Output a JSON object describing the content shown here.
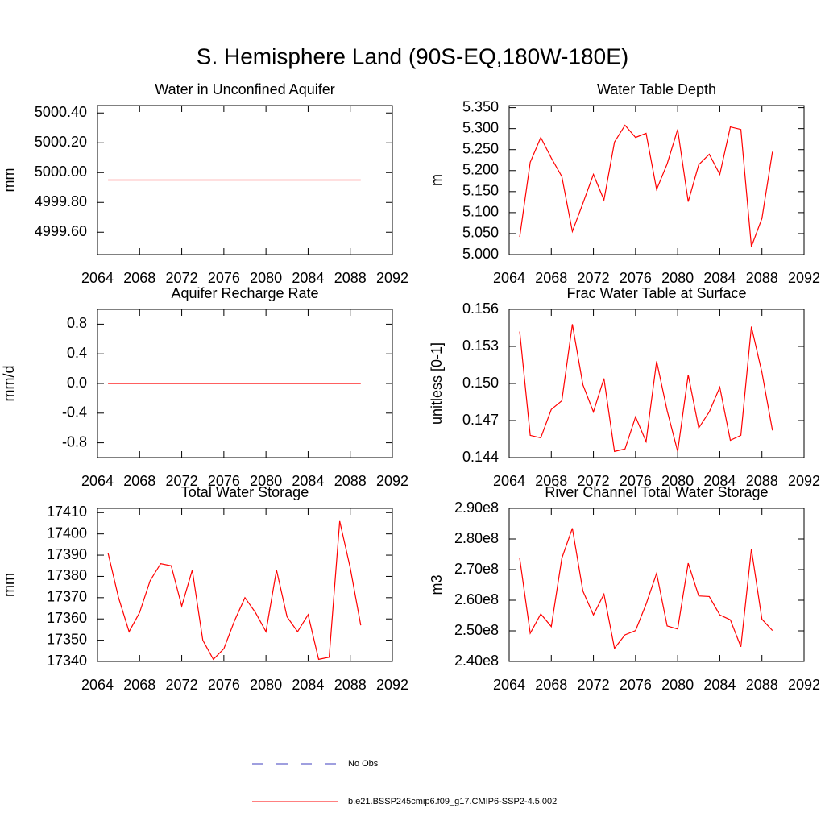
{
  "title": "S. Hemisphere Land (90S-EQ,180W-180E)",
  "legend": [
    {
      "name": "No Obs",
      "color": "#3f3fbf",
      "dash": true
    },
    {
      "name": "b.e21.BSSP245cmip6.f09_g17.CMIP6-SSP2-4.5.002",
      "color": "#ff0000",
      "dash": false
    }
  ],
  "chart_data": [
    {
      "type": "line",
      "title": "Water in Unconfined Aquifer",
      "y_label": "mm",
      "x": [
        2065,
        2066,
        2067,
        2068,
        2069,
        2070,
        2071,
        2072,
        2073,
        2074,
        2075,
        2076,
        2077,
        2078,
        2079,
        2080,
        2081,
        2082,
        2083,
        2084,
        2085,
        2086,
        2087,
        2088,
        2089
      ],
      "xlim": [
        2064,
        2092
      ],
      "xticks": [
        2064,
        2068,
        2072,
        2076,
        2080,
        2084,
        2088,
        2092
      ],
      "ylim": [
        4999.45,
        5000.45
      ],
      "yticks": [
        {
          "value": 4999.6,
          "label": "4999.60"
        },
        {
          "value": 4999.8,
          "label": "4999.80"
        },
        {
          "value": 5000,
          "label": "5000.00"
        },
        {
          "value": 5000.2,
          "label": "5000.20"
        },
        {
          "value": 5000.4,
          "label": "5000.40"
        }
      ],
      "series": [
        {
          "color": "#ff0000",
          "values": [
            4999.95,
            4999.95,
            4999.95,
            4999.95,
            4999.95,
            4999.95,
            4999.95,
            4999.95,
            4999.95,
            4999.95,
            4999.95,
            4999.95,
            4999.95,
            4999.95,
            4999.95,
            4999.95,
            4999.95,
            4999.95,
            4999.95,
            4999.95,
            4999.95,
            4999.95,
            4999.95,
            4999.95,
            4999.95
          ]
        }
      ]
    },
    {
      "type": "line",
      "title": "Water Table Depth",
      "y_label": "m",
      "x": [
        2065,
        2066,
        2067,
        2068,
        2069,
        2070,
        2071,
        2072,
        2073,
        2074,
        2075,
        2076,
        2077,
        2078,
        2079,
        2080,
        2081,
        2082,
        2083,
        2084,
        2085,
        2086,
        2087,
        2088,
        2089
      ],
      "xlim": [
        2064,
        2092
      ],
      "xticks": [
        2064,
        2068,
        2072,
        2076,
        2080,
        2084,
        2088,
        2092
      ],
      "ylim": [
        5.0,
        5.355
      ],
      "yticks": [
        {
          "value": 5.0,
          "label": "5.000"
        },
        {
          "value": 5.05,
          "label": "5.050"
        },
        {
          "value": 5.1,
          "label": "5.100"
        },
        {
          "value": 5.15,
          "label": "5.150"
        },
        {
          "value": 5.2,
          "label": "5.200"
        },
        {
          "value": 5.25,
          "label": "5.250"
        },
        {
          "value": 5.3,
          "label": "5.300"
        },
        {
          "value": 5.35,
          "label": "5.350"
        }
      ],
      "series": [
        {
          "color": "#ff0000",
          "values": [
            5.042,
            5.22,
            5.279,
            5.23,
            5.186,
            5.055,
            5.122,
            5.191,
            5.13,
            5.268,
            5.308,
            5.279,
            5.289,
            5.155,
            5.216,
            5.298,
            5.126,
            5.214,
            5.239,
            5.191,
            5.304,
            5.298,
            5.019,
            5.086,
            5.245
          ]
        }
      ]
    },
    {
      "type": "line",
      "title": "Aquifer Recharge Rate",
      "y_label": "mm/d",
      "x": [
        2065,
        2066,
        2067,
        2068,
        2069,
        2070,
        2071,
        2072,
        2073,
        2074,
        2075,
        2076,
        2077,
        2078,
        2079,
        2080,
        2081,
        2082,
        2083,
        2084,
        2085,
        2086,
        2087,
        2088,
        2089
      ],
      "xlim": [
        2064,
        2092
      ],
      "xticks": [
        2064,
        2068,
        2072,
        2076,
        2080,
        2084,
        2088,
        2092
      ],
      "ylim": [
        -1,
        1
      ],
      "yticks": [
        -0.8,
        -0.4,
        {
          "value": 0,
          "label": "0.0"
        },
        0.4,
        0.8
      ],
      "series": [
        {
          "color": "#ff0000",
          "values": [
            0,
            0,
            0,
            0,
            0,
            0,
            0,
            0,
            0,
            0,
            0,
            0,
            0,
            0,
            0,
            0,
            0,
            0,
            0,
            0,
            0,
            0,
            0,
            0,
            0
          ]
        }
      ]
    },
    {
      "type": "line",
      "title": "Frac Water Table at Surface",
      "y_label": "unitless [0-1]",
      "x": [
        2065,
        2066,
        2067,
        2068,
        2069,
        2070,
        2071,
        2072,
        2073,
        2074,
        2075,
        2076,
        2077,
        2078,
        2079,
        2080,
        2081,
        2082,
        2083,
        2084,
        2085,
        2086,
        2087,
        2088,
        2089
      ],
      "xlim": [
        2064,
        2092
      ],
      "xticks": [
        2064,
        2068,
        2072,
        2076,
        2080,
        2084,
        2088,
        2092
      ],
      "ylim": [
        0.144,
        0.156
      ],
      "yticks": [
        0.144,
        0.147,
        {
          "value": 0.15,
          "label": "0.150"
        },
        0.153,
        0.156
      ],
      "series": [
        {
          "color": "#ff0000",
          "values": [
            0.1542,
            0.1458,
            0.1456,
            0.1479,
            0.1486,
            0.1548,
            0.1499,
            0.1477,
            0.1504,
            0.1445,
            0.1447,
            0.1473,
            0.1453,
            0.1518,
            0.1478,
            0.1445,
            0.1507,
            0.1464,
            0.1477,
            0.1497,
            0.1454,
            0.1458,
            0.1546,
            0.1509,
            0.1462
          ]
        }
      ]
    },
    {
      "type": "line",
      "title": "Total Water Storage",
      "y_label": "mm",
      "x": [
        2065,
        2066,
        2067,
        2068,
        2069,
        2070,
        2071,
        2072,
        2073,
        2074,
        2075,
        2076,
        2077,
        2078,
        2079,
        2080,
        2081,
        2082,
        2083,
        2084,
        2085,
        2086,
        2087,
        2088,
        2089
      ],
      "xlim": [
        2064,
        2092
      ],
      "xticks": [
        2064,
        2068,
        2072,
        2076,
        2080,
        2084,
        2088,
        2092
      ],
      "ylim": [
        17340,
        17412
      ],
      "yticks": [
        17340,
        17350,
        17360,
        17370,
        17380,
        17390,
        17400,
        17410
      ],
      "series": [
        {
          "color": "#ff0000",
          "values": [
            17391,
            17370,
            17354,
            17363,
            17378,
            17386,
            17385,
            17366,
            17383,
            17350,
            17341,
            17346,
            17359,
            17370,
            17363,
            17354,
            17383,
            17361,
            17354,
            17362,
            17341,
            17342,
            17406,
            17384,
            17357
          ]
        }
      ]
    },
    {
      "type": "line",
      "title": "River Channel Total Water Storage",
      "y_label": "m3",
      "x": [
        2065,
        2066,
        2067,
        2068,
        2069,
        2070,
        2071,
        2072,
        2073,
        2074,
        2075,
        2076,
        2077,
        2078,
        2079,
        2080,
        2081,
        2082,
        2083,
        2084,
        2085,
        2086,
        2087,
        2088,
        2089
      ],
      "xlim": [
        2064,
        2092
      ],
      "xticks": [
        2064,
        2068,
        2072,
        2076,
        2080,
        2084,
        2088,
        2092
      ],
      "ylim": [
        240000000,
        290000000
      ],
      "yticks": [
        {
          "value": 240000000,
          "label": "2.40e8"
        },
        {
          "value": 250000000,
          "label": "2.50e8"
        },
        {
          "value": 260000000,
          "label": "2.60e8"
        },
        {
          "value": 270000000,
          "label": "2.70e8"
        },
        {
          "value": 280000000,
          "label": "2.80e8"
        },
        {
          "value": 290000000,
          "label": "2.90e8"
        }
      ],
      "series": [
        {
          "color": "#ff0000",
          "values": [
            273700000,
            249200000,
            255500000,
            251400000,
            273700000,
            283500000,
            263000000,
            255200000,
            262000000,
            244300000,
            248700000,
            250100000,
            258700000,
            268800000,
            251600000,
            250600000,
            272100000,
            261400000,
            261200000,
            255200000,
            253600000,
            244800000,
            276700000,
            253800000,
            250100000
          ]
        }
      ]
    }
  ]
}
